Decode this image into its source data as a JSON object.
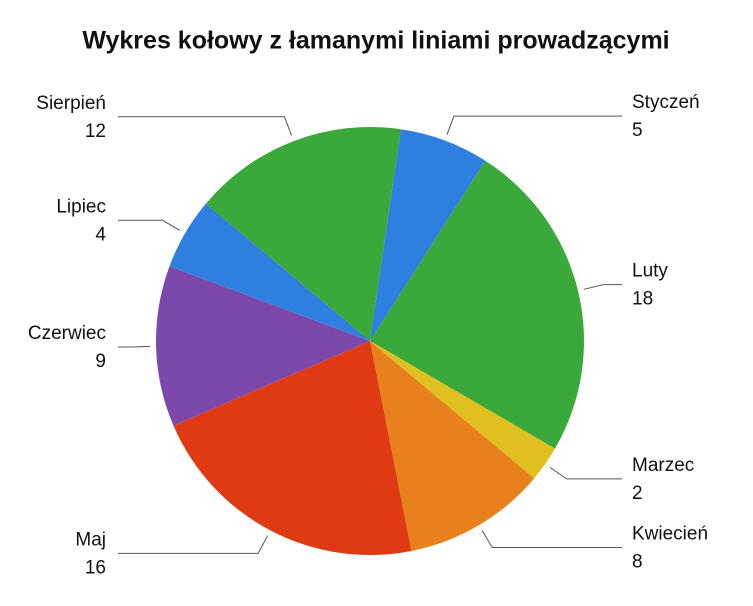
{
  "chart_data": {
    "type": "pie",
    "title": "Wykres kołowy z łamanymi liniami prowadzącymi",
    "categories": [
      "Styczeń",
      "Luty",
      "Marzec",
      "Kwiecień",
      "Maj",
      "Czerwiec",
      "Lipiec",
      "Sierpień"
    ],
    "values": [
      5,
      18,
      2,
      8,
      16,
      9,
      4,
      12
    ],
    "colors": [
      "#2f7fe0",
      "#3aa83a",
      "#e0c020",
      "#e8801c",
      "#e03a14",
      "#7d48ac",
      "#2f7fe0",
      "#3aa83a"
    ]
  }
}
